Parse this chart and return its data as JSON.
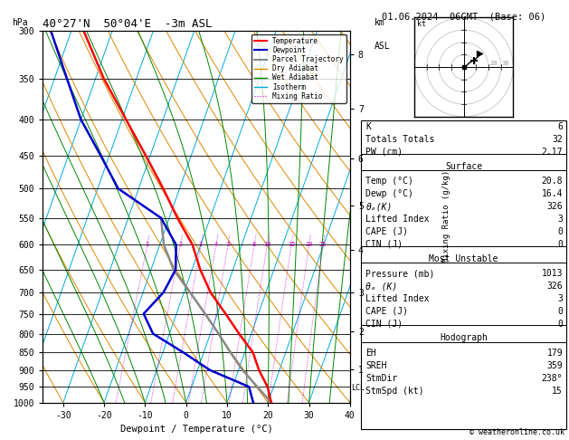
{
  "title_left": "40°27'N  50°04'E  -3m ASL",
  "title_date": "01.06.2024  06GMT  (Base: 06)",
  "xlabel": "Dewpoint / Temperature (°C)",
  "ylabel_left": "hPa",
  "pressure_levels": [
    300,
    350,
    400,
    450,
    500,
    550,
    600,
    650,
    700,
    750,
    800,
    850,
    900,
    950,
    1000
  ],
  "xmin": -35,
  "xmax": 40,
  "skew_factor": 32,
  "temp_profile": {
    "pressure": [
      1000,
      950,
      900,
      850,
      800,
      750,
      700,
      650,
      600,
      550,
      500,
      450,
      400,
      350,
      300
    ],
    "temperature": [
      20.8,
      18.5,
      15.0,
      12.0,
      7.0,
      2.0,
      -3.5,
      -8.0,
      -12.0,
      -18.0,
      -24.0,
      -31.0,
      -39.0,
      -48.0,
      -57.0
    ]
  },
  "dewp_profile": {
    "pressure": [
      1000,
      950,
      900,
      850,
      800,
      750,
      700,
      650,
      600,
      550,
      500,
      450,
      400,
      350,
      300
    ],
    "dewpoint": [
      16.4,
      14.0,
      3.0,
      -5.0,
      -14.0,
      -18.0,
      -15.0,
      -14.0,
      -16.0,
      -22.0,
      -35.0,
      -42.0,
      -50.0,
      -57.0,
      -65.0
    ]
  },
  "parcel_profile": {
    "pressure": [
      1000,
      950,
      900,
      850,
      800,
      750,
      700,
      650,
      600,
      550
    ],
    "temperature": [
      20.8,
      16.0,
      11.0,
      6.5,
      2.0,
      -3.0,
      -8.5,
      -14.5,
      -19.0,
      -22.0
    ]
  },
  "mixing_ratio_labels": [
    1,
    2,
    3,
    4,
    5,
    8,
    10,
    15,
    20,
    25
  ],
  "km_asl_labels": [
    1,
    2,
    3,
    4,
    5,
    6,
    7,
    8
  ],
  "km_asl_pressures": [
    898,
    795,
    700,
    610,
    528,
    454,
    386,
    324
  ],
  "lcl_pressure": 953,
  "color_temp": "#ff0000",
  "color_dewp": "#0000cc",
  "color_parcel": "#888888",
  "color_dry_adiabat": "#dd8800",
  "color_wet_adiabat": "#008800",
  "color_isotherm": "#00aadd",
  "color_mixing": "#cc00cc",
  "background": "#ffffff",
  "panel_K": 6,
  "panel_TT": 32,
  "panel_PW": "2.17",
  "panel_surf_temp": "20.8",
  "panel_surf_dewp": "16.4",
  "panel_surf_theta_e": 326,
  "panel_surf_li": 3,
  "panel_surf_cape": 0,
  "panel_surf_cin": 0,
  "panel_mu_pressure": 1013,
  "panel_mu_theta_e": 326,
  "panel_mu_li": 3,
  "panel_mu_cape": 0,
  "panel_mu_cin": 0,
  "panel_hodo_EH": 179,
  "panel_hodo_SREH": 359,
  "panel_hodo_StmDir": "238°",
  "panel_hodo_StmSpd": 15,
  "copyright": "© weatheronline.co.uk"
}
